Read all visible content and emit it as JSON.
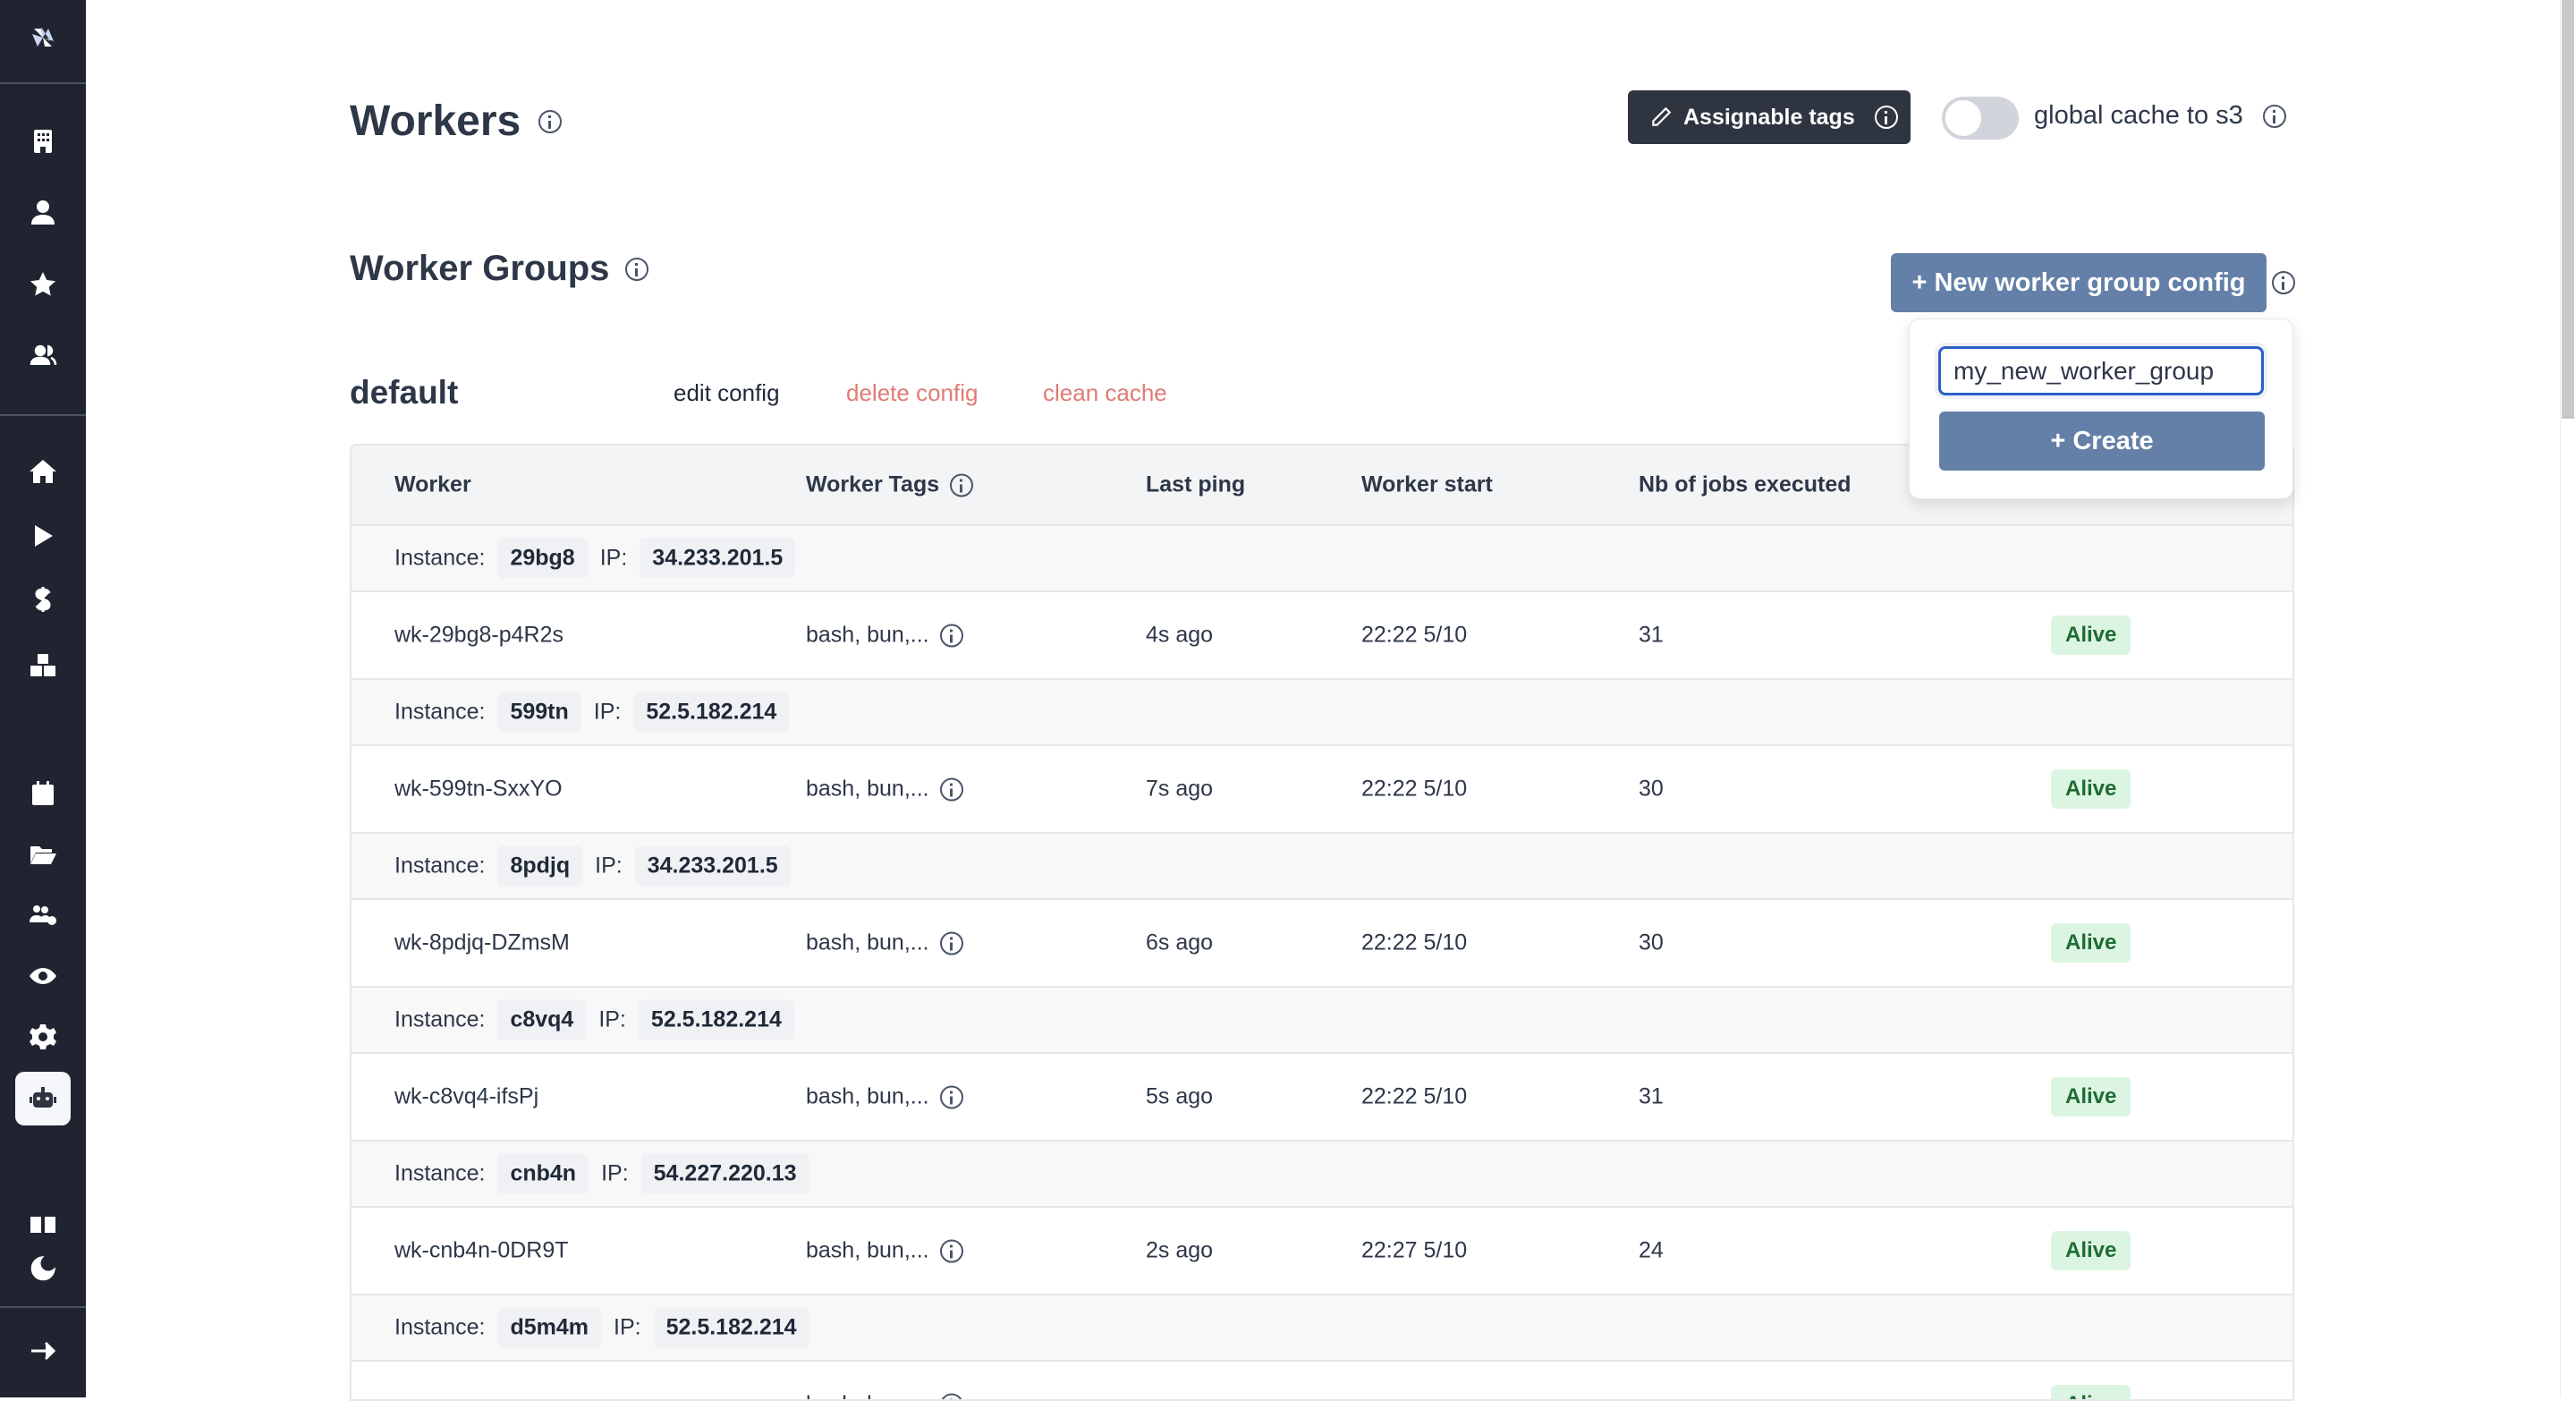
{
  "page": {
    "title": "Workers",
    "subtitle": "Worker Groups"
  },
  "toolbar": {
    "assignable_tags_label": "Assignable tags",
    "global_cache_label": "global cache to s3",
    "global_cache_enabled": false
  },
  "new_group": {
    "button_label": "+ New worker group config",
    "input_value": "my_new_worker_group",
    "create_label": "+ Create"
  },
  "group": {
    "name": "default",
    "edit_label": "edit config",
    "delete_label": "delete config",
    "clean_label": "clean cache"
  },
  "colors": {
    "accent": "#6480a8",
    "danger_link": "#e07a72",
    "sidebar": "#1f2430",
    "alive_bg": "#dcf5e2"
  },
  "table": {
    "headers": [
      "Worker",
      "Worker Tags",
      "Last ping",
      "Worker start",
      "Nb of jobs executed"
    ],
    "instance_label": "Instance:",
    "ip_label": "IP:",
    "rows": [
      {
        "instance": "29bg8",
        "ip": "34.233.201.5",
        "worker": "wk-29bg8-p4R2s",
        "tags": "bash, bun,...",
        "ping": "4s ago",
        "start": "22:22 5/10",
        "jobs": "31",
        "status": "Alive"
      },
      {
        "instance": "599tn",
        "ip": "52.5.182.214",
        "worker": "wk-599tn-SxxYO",
        "tags": "bash, bun,...",
        "ping": "7s ago",
        "start": "22:22 5/10",
        "jobs": "30",
        "status": "Alive"
      },
      {
        "instance": "8pdjq",
        "ip": "34.233.201.5",
        "worker": "wk-8pdjq-DZmsM",
        "tags": "bash, bun,...",
        "ping": "6s ago",
        "start": "22:22 5/10",
        "jobs": "30",
        "status": "Alive"
      },
      {
        "instance": "c8vq4",
        "ip": "52.5.182.214",
        "worker": "wk-c8vq4-ifsPj",
        "tags": "bash, bun,...",
        "ping": "5s ago",
        "start": "22:22 5/10",
        "jobs": "31",
        "status": "Alive"
      },
      {
        "instance": "cnb4n",
        "ip": "54.227.220.13",
        "worker": "wk-cnb4n-0DR9T",
        "tags": "bash, bun,...",
        "ping": "2s ago",
        "start": "22:27 5/10",
        "jobs": "24",
        "status": "Alive"
      },
      {
        "instance": "d5m4m",
        "ip": "52.5.182.214",
        "worker": "",
        "tags": "bash, bun,...",
        "ping": "",
        "start": "",
        "jobs": "",
        "status": "Alive"
      }
    ]
  },
  "sidebar": {
    "icons": [
      "windmill-logo",
      "building-icon",
      "user-icon",
      "star-icon",
      "users-icon",
      "home-icon",
      "play-icon",
      "dollar-icon",
      "boxes-icon",
      "calendar-icon",
      "folder-open-icon",
      "users-cog-icon",
      "eye-icon",
      "gear-icon",
      "bot-icon",
      "book-open-icon",
      "moon-icon",
      "arrow-right-icon"
    ],
    "active": "bot-icon"
  }
}
